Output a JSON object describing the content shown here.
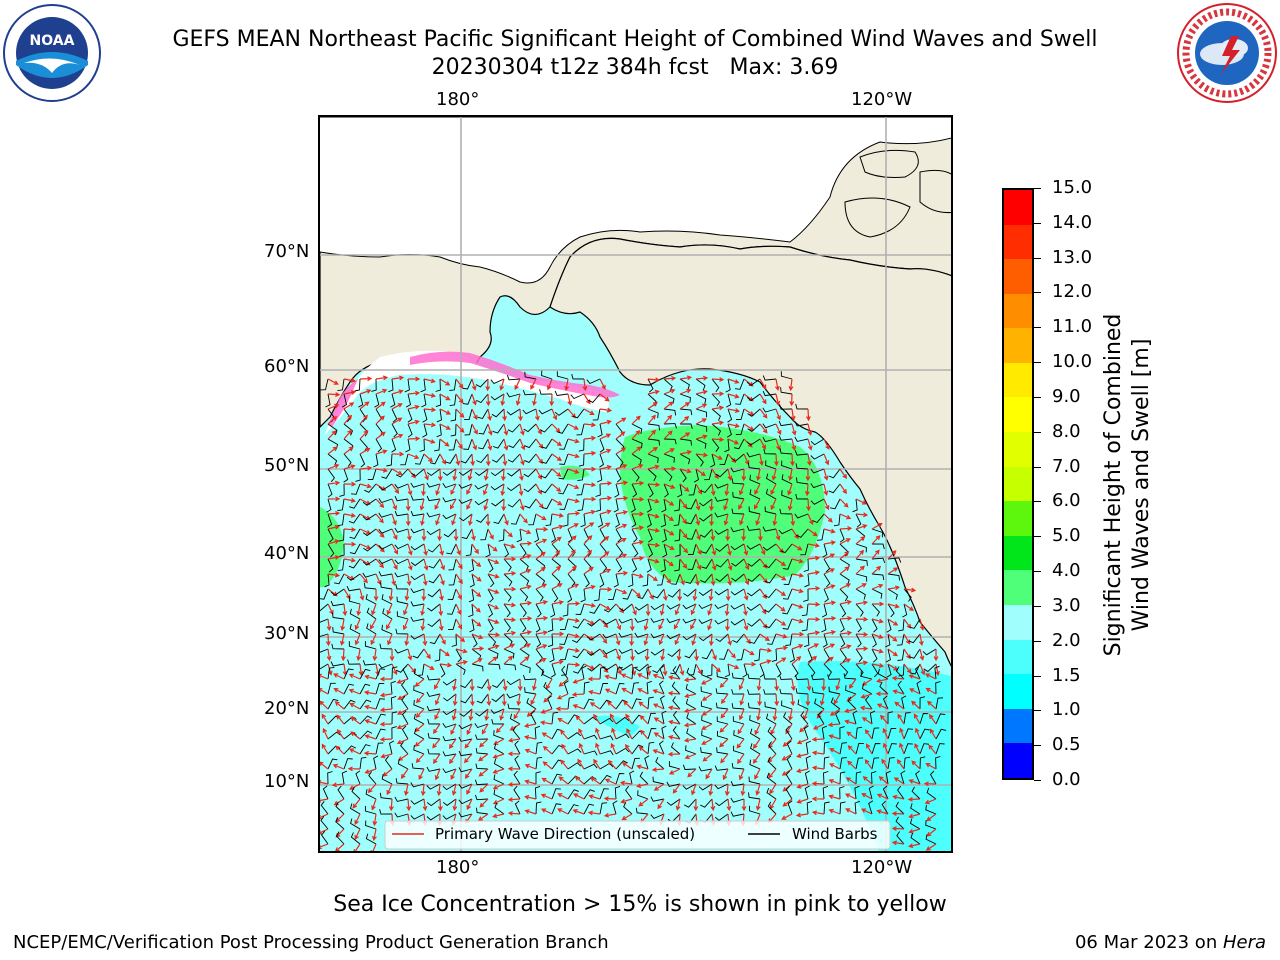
{
  "header": {
    "title_line1": "GEFS MEAN Northeast Pacific Significant Height of Combined Wind Waves and Swell",
    "title_line2": "20230304 t12z 384h fcst   Max: 3.69"
  },
  "logos": {
    "left": {
      "icon": "noaa-logo",
      "text": "NOAA"
    },
    "right": {
      "icon": "nws-logo",
      "text": "NATIONAL WEATHER SERVICE"
    }
  },
  "map": {
    "lon_labels": [
      "180°",
      "120°W"
    ],
    "lat_labels": [
      "70°N",
      "60°N",
      "50°N",
      "40°N",
      "30°N",
      "20°N",
      "10°N"
    ],
    "legend": {
      "wave_label": "Primary Wave Direction (unscaled)",
      "barb_label": "Wind Barbs",
      "wave_color": "#e8291c",
      "barb_color": "#000000"
    },
    "note": "Sea Ice Concentration > 15% is shown in pink to yellow"
  },
  "colorbar": {
    "label_line1": "Significant Height of Combined",
    "label_line2": "Wind Waves and Swell [m]",
    "ticks": [
      "0.0",
      "0.5",
      "1.0",
      "1.5",
      "2.0",
      "3.0",
      "4.0",
      "5.0",
      "6.0",
      "7.0",
      "8.0",
      "9.0",
      "10.0",
      "11.0",
      "12.0",
      "13.0",
      "14.0",
      "15.0"
    ],
    "colors": [
      "#0000ff",
      "#0077ff",
      "#00ffff",
      "#4dfffc",
      "#a0fffc",
      "#4fff7a",
      "#00e61b",
      "#5cf70c",
      "#c5ff00",
      "#e2ff00",
      "#ffff00",
      "#ffea00",
      "#ffb300",
      "#ff8d00",
      "#ff5e00",
      "#ff2d00",
      "#ff0000"
    ]
  },
  "footer": {
    "left": "NCEP/EMC/Verification Post Processing Product Generation Branch",
    "right_date": "06 Mar 2023 on ",
    "right_host": "Hera"
  }
}
